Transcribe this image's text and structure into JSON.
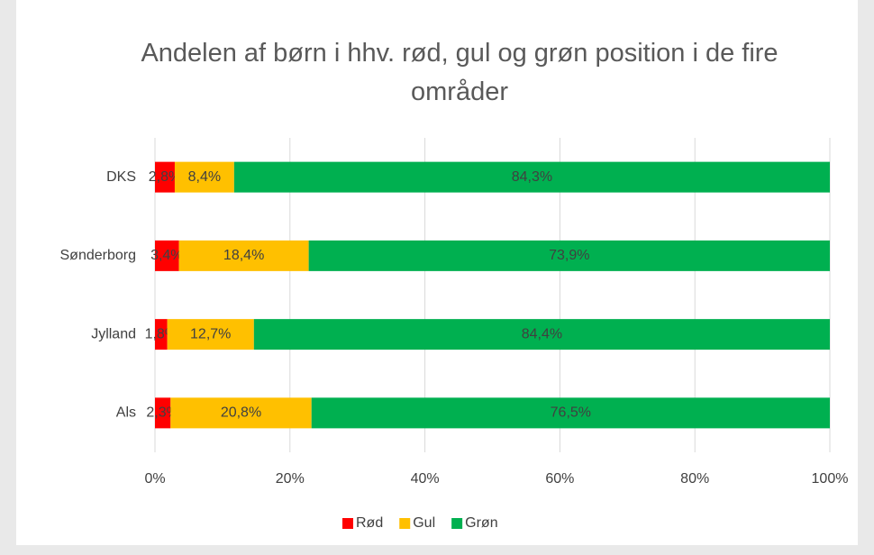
{
  "chart_data": {
    "type": "bar",
    "orientation": "horizontal",
    "stacking": "percent",
    "title": "Andelen af børn i hhv. rød, gul og grøn position i de fire områder",
    "categories": [
      "DKS",
      "Sønderborg",
      "Jylland",
      "Als"
    ],
    "series": [
      {
        "name": "Rød",
        "color": "#ff0000",
        "values": [
          2.8,
          3.4,
          1.8,
          2.3
        ],
        "value_labels": [
          "2,8%",
          "3,4%",
          "1,8%",
          "2,3%"
        ]
      },
      {
        "name": "Gul",
        "color": "#ffc000",
        "values": [
          8.4,
          18.4,
          12.7,
          20.8
        ],
        "value_labels": [
          "8,4%",
          "18,4%",
          "12,7%",
          "20,8%"
        ]
      },
      {
        "name": "Grøn",
        "color": "#00b050",
        "values": [
          84.3,
          73.9,
          84.4,
          76.5
        ],
        "value_labels": [
          "84,3%",
          "73,9%",
          "84,4%",
          "76,5%"
        ]
      }
    ],
    "xlim": [
      0,
      100
    ],
    "xticks": [
      {
        "value": 0,
        "label": "0%"
      },
      {
        "value": 20,
        "label": "20%"
      },
      {
        "value": 40,
        "label": "40%"
      },
      {
        "value": 60,
        "label": "60%"
      },
      {
        "value": 80,
        "label": "80%"
      },
      {
        "value": 100,
        "label": "100%"
      }
    ],
    "grid": true,
    "legend": "bottom"
  }
}
